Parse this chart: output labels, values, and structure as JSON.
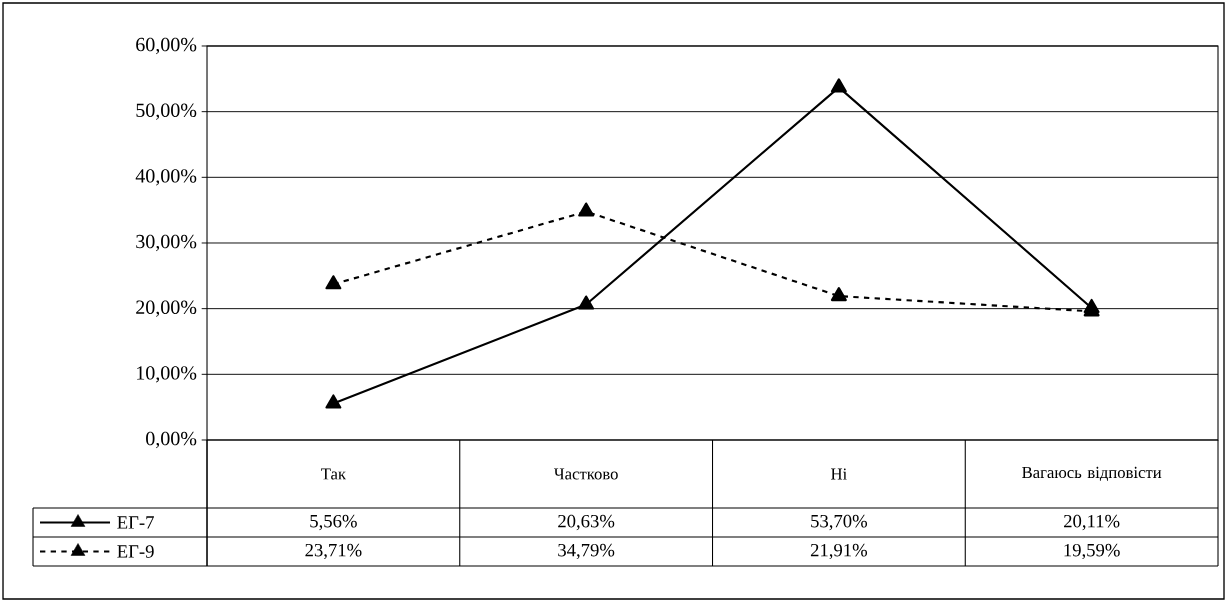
{
  "chart_data": {
    "type": "line",
    "categories": [
      "Так",
      "Частково",
      "Ні",
      "Вагаюсь відповісти"
    ],
    "ylim": [
      0,
      60
    ],
    "yticks": [
      {
        "value": 0,
        "label": "0,00%"
      },
      {
        "value": 10,
        "label": "10,00%"
      },
      {
        "value": 20,
        "label": "20,00%"
      },
      {
        "value": 30,
        "label": "30,00%"
      },
      {
        "value": 40,
        "label": "40,00%"
      },
      {
        "value": 50,
        "label": "50,00%"
      },
      {
        "value": 60,
        "label": "60,00%"
      }
    ],
    "grid": "y",
    "legend": "bottom",
    "marker": "triangle",
    "series": [
      {
        "name": "ЕГ-7",
        "color": "#000000",
        "line_style": "solid",
        "values": [
          5.56,
          20.63,
          53.7,
          20.11
        ],
        "value_labels": [
          "5,56%",
          "20,63%",
          "53,70%",
          "20,11%"
        ]
      },
      {
        "name": "ЕГ-9",
        "color": "#000000",
        "line_style": "dashed",
        "values": [
          23.71,
          34.79,
          21.91,
          19.59
        ],
        "value_labels": [
          "23,71%",
          "34,79%",
          "21,91%",
          "19,59%"
        ]
      }
    ]
  }
}
